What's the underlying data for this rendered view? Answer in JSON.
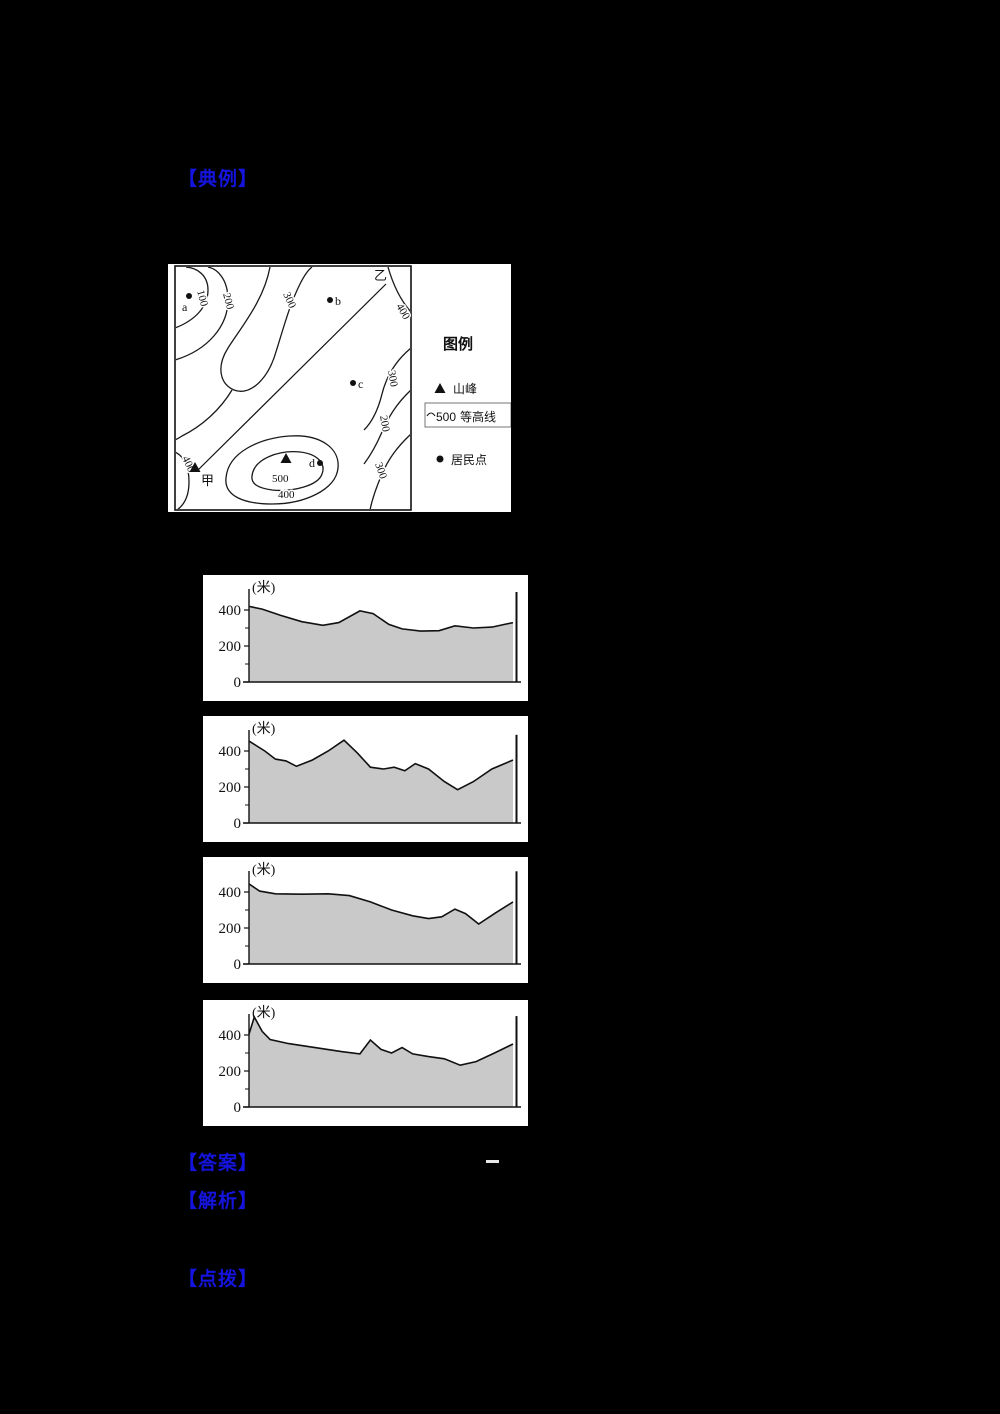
{
  "page": {
    "background": "#000000",
    "accent_blue": "#1414dd",
    "figure_background": "#ffffff",
    "profile_fill": "#c9c9c9"
  },
  "annotations": {
    "example": "【典例】",
    "answer": "【答案】",
    "answer_dash": "—",
    "analysis": "【解析】",
    "tip": "【点拨】"
  },
  "map_figure": {
    "contour_labels": [
      "100",
      "200",
      "300",
      "400",
      "300",
      "200",
      "300",
      "400",
      "400"
    ],
    "peak_value": "500",
    "points": {
      "a": "a",
      "b": "b",
      "c": "c",
      "d": "d"
    },
    "route": {
      "start": "甲",
      "end": "乙"
    },
    "legend": {
      "title": "图例",
      "peak_label": "山峰",
      "contour_value": "500",
      "contour_label": "等高线",
      "settlement_label": "居民点"
    }
  },
  "chart_data": [
    {
      "type": "area",
      "title": "地形剖面图选项1",
      "unit": "(米)",
      "ylabel": "(米)",
      "yticks": [
        0,
        200,
        400
      ],
      "minor_ticks": [
        100,
        300
      ],
      "ylim": [
        0,
        520
      ],
      "x_meaning": "甲到乙剖面线归一化距离0-1",
      "points": [
        [
          0.0,
          420
        ],
        [
          0.05,
          405
        ],
        [
          0.12,
          370
        ],
        [
          0.2,
          335
        ],
        [
          0.28,
          315
        ],
        [
          0.34,
          330
        ],
        [
          0.42,
          395
        ],
        [
          0.47,
          380
        ],
        [
          0.53,
          320
        ],
        [
          0.58,
          295
        ],
        [
          0.65,
          283
        ],
        [
          0.72,
          285
        ],
        [
          0.78,
          312
        ],
        [
          0.85,
          300
        ],
        [
          0.92,
          305
        ],
        [
          1.0,
          330
        ]
      ],
      "end_spike": 500
    },
    {
      "type": "area",
      "title": "地形剖面图选项2",
      "unit": "(米)",
      "ylabel": "(米)",
      "yticks": [
        0,
        200,
        400
      ],
      "minor_ticks": [
        100,
        300
      ],
      "ylim": [
        0,
        520
      ],
      "x_meaning": "甲到乙剖面线归一化距离0-1",
      "points": [
        [
          0.0,
          455
        ],
        [
          0.06,
          400
        ],
        [
          0.1,
          355
        ],
        [
          0.14,
          345
        ],
        [
          0.18,
          315
        ],
        [
          0.24,
          350
        ],
        [
          0.3,
          400
        ],
        [
          0.36,
          460
        ],
        [
          0.41,
          390
        ],
        [
          0.46,
          310
        ],
        [
          0.51,
          300
        ],
        [
          0.55,
          310
        ],
        [
          0.59,
          290
        ],
        [
          0.63,
          330
        ],
        [
          0.68,
          300
        ],
        [
          0.74,
          230
        ],
        [
          0.79,
          185
        ],
        [
          0.85,
          230
        ],
        [
          0.92,
          300
        ],
        [
          1.0,
          350
        ]
      ],
      "end_spike": 490
    },
    {
      "type": "area",
      "title": "地形剖面图选项3",
      "unit": "(米)",
      "ylabel": "(米)",
      "yticks": [
        0,
        200,
        400
      ],
      "minor_ticks": [
        100,
        300
      ],
      "ylim": [
        0,
        520
      ],
      "x_meaning": "甲到乙剖面线归一化距离0-1",
      "points": [
        [
          0.0,
          445
        ],
        [
          0.04,
          405
        ],
        [
          0.1,
          390
        ],
        [
          0.2,
          388
        ],
        [
          0.3,
          390
        ],
        [
          0.38,
          380
        ],
        [
          0.46,
          345
        ],
        [
          0.54,
          300
        ],
        [
          0.62,
          268
        ],
        [
          0.68,
          252
        ],
        [
          0.73,
          262
        ],
        [
          0.78,
          305
        ],
        [
          0.82,
          280
        ],
        [
          0.87,
          222
        ],
        [
          0.93,
          280
        ],
        [
          1.0,
          345
        ]
      ],
      "end_spike": 515
    },
    {
      "type": "area",
      "title": "地形剖面图选项4",
      "unit": "(米)",
      "ylabel": "(米)",
      "yticks": [
        0,
        200,
        400
      ],
      "minor_ticks": [
        100,
        300
      ],
      "ylim": [
        0,
        520
      ],
      "x_meaning": "甲到乙剖面线归一化距离0-1",
      "points": [
        [
          0.0,
          405
        ],
        [
          0.02,
          500
        ],
        [
          0.05,
          420
        ],
        [
          0.08,
          375
        ],
        [
          0.15,
          352
        ],
        [
          0.25,
          330
        ],
        [
          0.35,
          308
        ],
        [
          0.42,
          295
        ],
        [
          0.46,
          372
        ],
        [
          0.5,
          320
        ],
        [
          0.54,
          300
        ],
        [
          0.58,
          330
        ],
        [
          0.62,
          295
        ],
        [
          0.68,
          280
        ],
        [
          0.74,
          268
        ],
        [
          0.8,
          232
        ],
        [
          0.86,
          252
        ],
        [
          0.93,
          300
        ],
        [
          1.0,
          350
        ]
      ],
      "end_spike": 505
    }
  ]
}
